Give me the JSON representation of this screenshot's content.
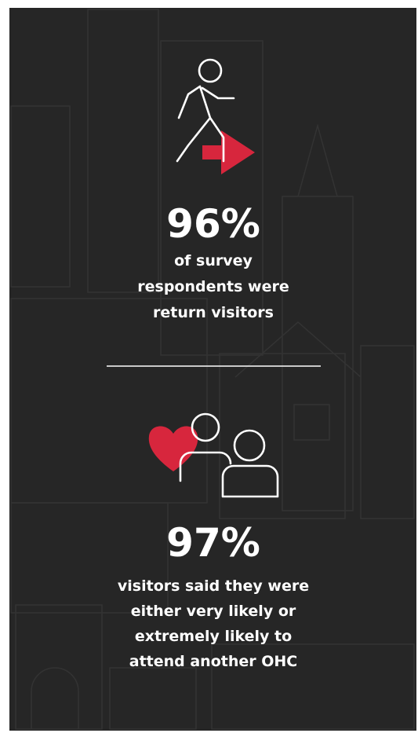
{
  "stats": [
    {
      "value": "96%",
      "lines": [
        "of survey",
        "respondents were",
        "return visitors"
      ]
    },
    {
      "value": "97%",
      "lines": [
        "visitors said they were",
        "either very likely or",
        "extremely likely to",
        "attend another OHC"
      ]
    }
  ]
}
